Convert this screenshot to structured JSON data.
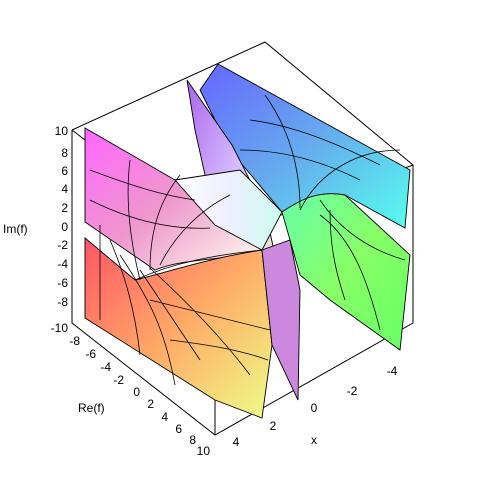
{
  "chart_data": {
    "type": "surface3d",
    "title": "",
    "axes": {
      "x": {
        "label": "x",
        "range": [
          -5,
          5
        ],
        "ticks": [
          "4",
          "2",
          "0",
          "-2",
          "-4"
        ]
      },
      "re": {
        "label": "Re(f)",
        "range": [
          -10,
          10
        ],
        "ticks": [
          "-8",
          "-6",
          "-4",
          "-2",
          "0",
          "2",
          "4",
          "6",
          "8",
          "10"
        ]
      },
      "im": {
        "label": "Im(f)",
        "range": [
          -10,
          10
        ],
        "ticks": [
          "10",
          "8",
          "6",
          "4",
          "2",
          "0",
          "-2",
          "-4",
          "-6",
          "-8",
          "-10"
        ]
      }
    },
    "coloring": "phase-hue",
    "box": true,
    "legend": "none"
  }
}
